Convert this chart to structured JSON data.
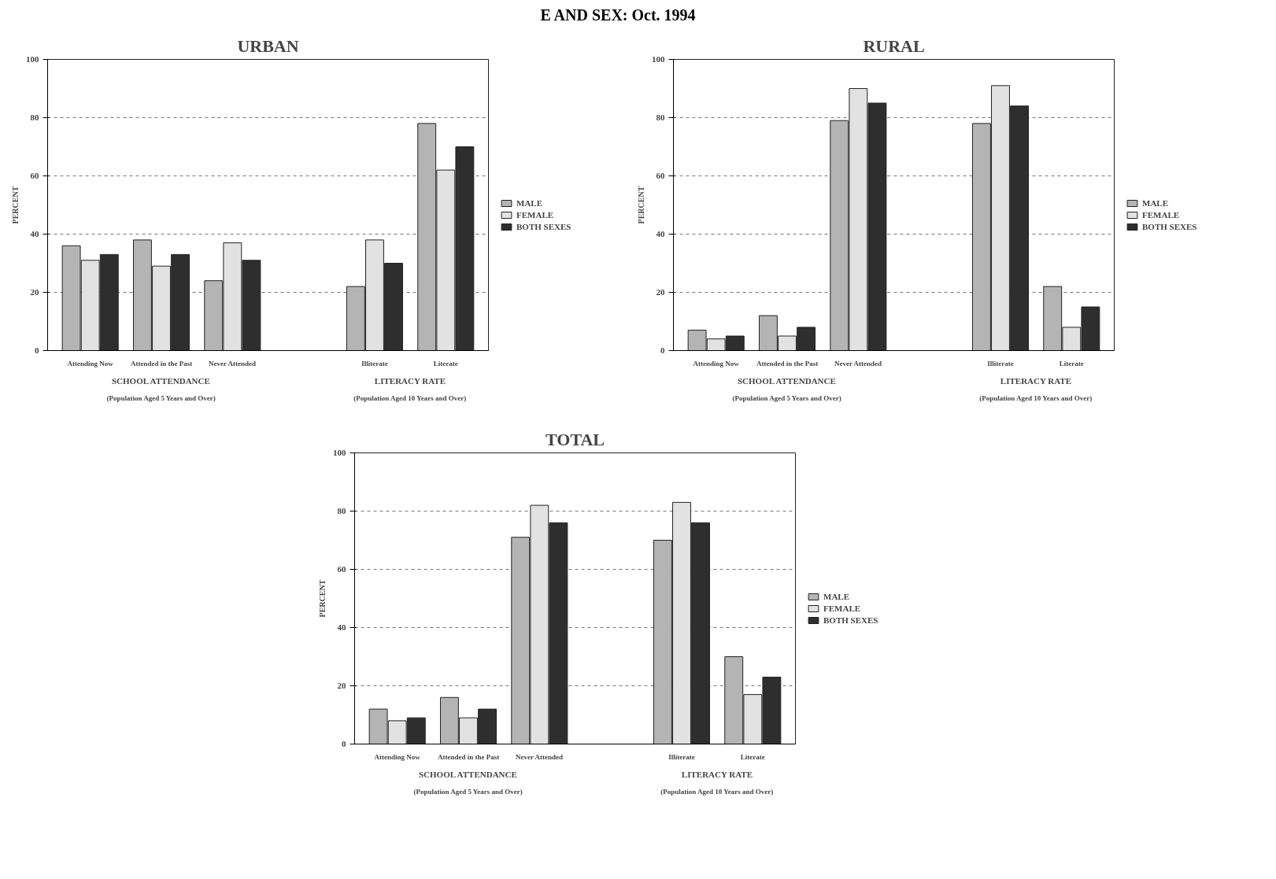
{
  "chart_data": [
    {
      "type": "bar",
      "title": "URBAN",
      "ylabel": "PERCENT",
      "annotations": [
        "E AND SEX:  Oct. 1994",
        "SCHOOL ATTENDANCE",
        "(Population Aged 5 Years and Over)",
        "LITERACY RATE",
        "(Population Aged 10 Years and Over)"
      ],
      "categories": [
        "Attending Now",
        "Attended in the Past",
        "Never Attended",
        null,
        "Illiterate",
        "Literate"
      ],
      "series": [
        {
          "name": "MALE",
          "color": "#b4b4b4",
          "values": [
            36,
            38,
            24,
            null,
            22,
            78
          ]
        },
        {
          "name": "FEMALE",
          "color": "#e2e2e2",
          "values": [
            31,
            29,
            37,
            null,
            38,
            62
          ]
        },
        {
          "name": "BOTH SEXES",
          "color": "#2e2e2e",
          "values": [
            33,
            33,
            31,
            null,
            30,
            70
          ]
        }
      ],
      "ylim": [
        0,
        100
      ],
      "yticks": [
        0,
        20,
        40,
        60,
        80,
        100
      ],
      "grid": "y",
      "legend": "right"
    },
    {
      "type": "bar",
      "title": "RURAL",
      "ylabel": "PERCENT",
      "annotations": [
        "SCHOOL ATTENDANCE",
        "(Population Aged 5 Years and Over)",
        "LITERACY RATE",
        "(Population Aged 10 Years and Over)"
      ],
      "categories": [
        "Attending Now",
        "Attended in the Past",
        "Never Attended",
        null,
        "Illiterate",
        "Literate"
      ],
      "series": [
        {
          "name": "MALE",
          "color": "#b4b4b4",
          "values": [
            7,
            12,
            79,
            null,
            78,
            22
          ]
        },
        {
          "name": "FEMALE",
          "color": "#e2e2e2",
          "values": [
            4,
            5,
            90,
            null,
            91,
            8
          ]
        },
        {
          "name": "BOTH SEXES",
          "color": "#2e2e2e",
          "values": [
            5,
            8,
            85,
            null,
            84,
            15
          ]
        }
      ],
      "ylim": [
        0,
        100
      ],
      "yticks": [
        0,
        20,
        40,
        60,
        80,
        100
      ],
      "grid": "y",
      "legend": "right"
    },
    {
      "type": "bar",
      "title": "TOTAL",
      "ylabel": "PERCENT",
      "annotations": [
        "SCHOOL ATTENDANCE",
        "(Population Aged 5 Years and Over)",
        "LITERACY RATE",
        "(Population Aged 10 Years and Over)"
      ],
      "categories": [
        "Attending Now",
        "Attended in the Past",
        "Never Attended",
        null,
        "Illiterate",
        "Literate"
      ],
      "series": [
        {
          "name": "MALE",
          "color": "#b4b4b4",
          "values": [
            12,
            16,
            71,
            null,
            70,
            30
          ]
        },
        {
          "name": "FEMALE",
          "color": "#e2e2e2",
          "values": [
            8,
            9,
            82,
            null,
            83,
            17
          ]
        },
        {
          "name": "BOTH SEXES",
          "color": "#2e2e2e",
          "values": [
            9,
            12,
            76,
            null,
            76,
            23
          ]
        }
      ],
      "ylim": [
        0,
        100
      ],
      "yticks": [
        0,
        20,
        40,
        60,
        80,
        100
      ],
      "grid": "y",
      "legend": "right"
    }
  ]
}
